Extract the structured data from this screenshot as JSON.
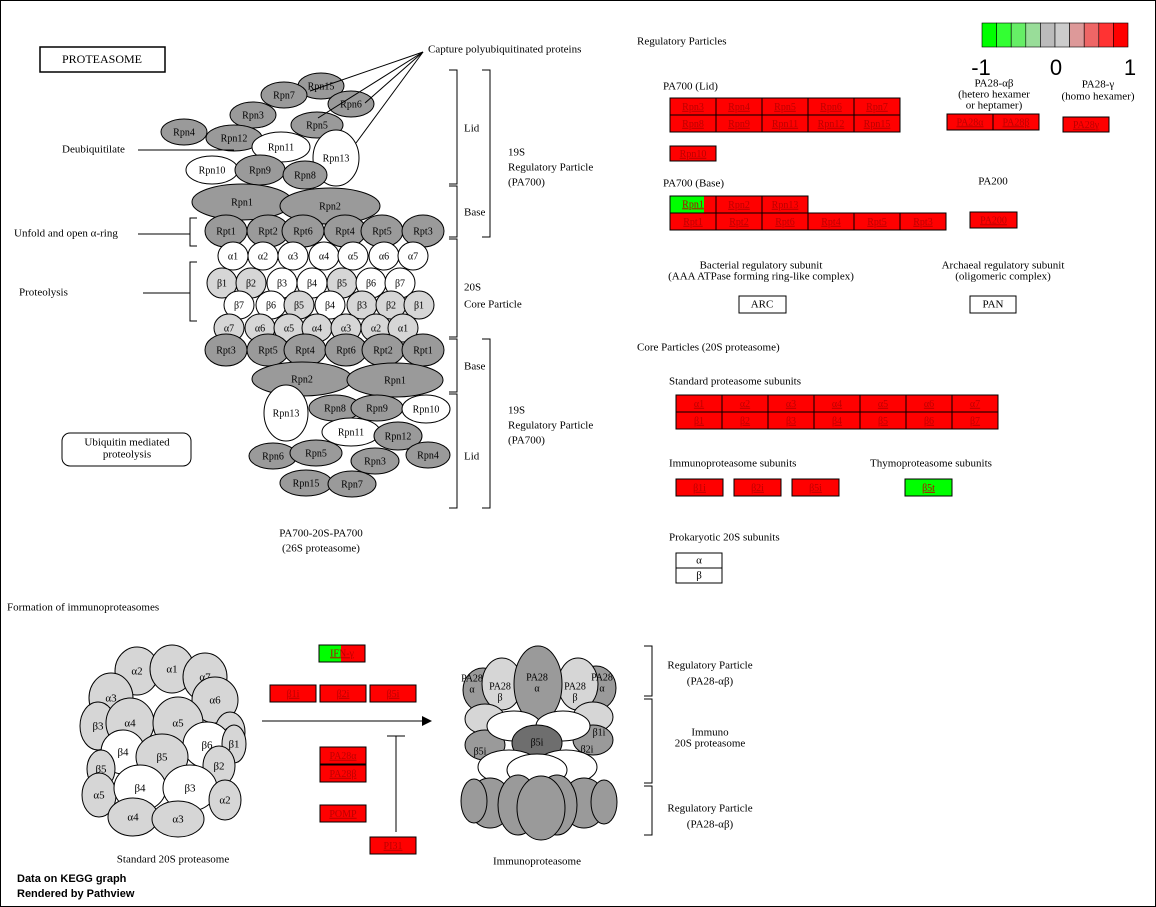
{
  "title": "PROTEASOME",
  "legend": {
    "colors": [
      "#00ff00",
      "#33ff33",
      "#66ee66",
      "#99dd99",
      "#bbbbbb",
      "#cccccc",
      "#dd9999",
      "#ee6666",
      "#ff3333",
      "#ff0000"
    ],
    "tick_min": "-1",
    "tick_mid": "0",
    "tick_max": "1"
  },
  "left_labels": {
    "capture": "Capture polyubiquitinated proteins",
    "deubiquitilate": "Deubiquitilate",
    "unfold": "Unfold and open α-ring",
    "proteolysis": "Proteolysis",
    "lid_top": "Lid",
    "base_top": "Base",
    "rp19s_top": [
      "19S",
      "Regulatory Particle",
      "(PA700)"
    ],
    "cp20s": [
      "20S",
      "Core Particle"
    ],
    "base_bottom": "Base",
    "lid_bottom": "Lid",
    "rp19s_bottom": [
      "19S",
      "Regulatory Particle",
      "(PA700)"
    ],
    "complex_caption": [
      "PA700-20S-PA700",
      "(26S proteasome)"
    ],
    "ubiquitin_box": [
      "Ubiquitin mediated",
      "proteolysis"
    ]
  },
  "structure": {
    "lid_top": [
      "Rpn15",
      "Rpn7",
      "Rpn6",
      "Rpn3",
      "Rpn5",
      "Rpn4",
      "Rpn12",
      "Rpn11",
      "Rpn13",
      "Rpn10",
      "Rpn9",
      "Rpn8"
    ],
    "base_top_big": [
      "Rpn1",
      "Rpn2"
    ],
    "rpt_top": [
      "Rpt1",
      "Rpt2",
      "Rpt6",
      "Rpt4",
      "Rpt5",
      "Rpt3"
    ],
    "alpha_top": [
      "α1",
      "α2",
      "α3",
      "α4",
      "α5",
      "α6",
      "α7"
    ],
    "beta_top": [
      "β1",
      "β2",
      "β3",
      "β4",
      "β5",
      "β6",
      "β7"
    ],
    "beta_bottom": [
      "β7",
      "β6",
      "β5",
      "β4",
      "β3",
      "β2",
      "β1"
    ],
    "alpha_bottom": [
      "α7",
      "α6",
      "α5",
      "α4",
      "α3",
      "α2",
      "α1"
    ],
    "rpt_bottom": [
      "Rpt3",
      "Rpt5",
      "Rpt4",
      "Rpt6",
      "Rpt2",
      "Rpt1"
    ],
    "base_bottom_big": [
      "Rpn2",
      "Rpn1"
    ],
    "lid_bottom": [
      "Rpn13",
      "Rpn8",
      "Rpn9",
      "Rpn10",
      "Rpn11",
      "Rpn12",
      "Rpn6",
      "Rpn5",
      "Rpn3",
      "Rpn4",
      "Rpn15",
      "Rpn7"
    ]
  },
  "regulatory": {
    "heading": "Regulatory Particles",
    "pa700_lid_label": "PA700 (Lid)",
    "pa700_lid_rows": [
      [
        "Rpn3",
        "Rpn4",
        "Rpn5",
        "Rpn6",
        "Rpn7"
      ],
      [
        "Rpn8",
        "Rpn9",
        "Rpn11",
        "Rpn12",
        "Rpn15"
      ]
    ],
    "rpn10": "Rpn10",
    "pa28ab_label": [
      "PA28-αβ",
      "(hetero hexamer",
      "or heptamer)"
    ],
    "pa28ab": [
      "PA28α",
      "PA28β"
    ],
    "pa28g_label": [
      "PA28-γ",
      "(homo hexamer)"
    ],
    "pa28g": "PA28γ",
    "pa700_base_label": "PA700 (Base)",
    "pa700_base_row1": [
      "Rpn1",
      "Rpn2",
      "Rpn13"
    ],
    "pa700_base_row2": [
      "Rpt1",
      "Rpt2",
      "Rpt6",
      "Rpt4",
      "Rpt5",
      "Rpt3"
    ],
    "pa200_label": "PA200",
    "pa200": "PA200",
    "bacterial_label": [
      "Bacterial regulatory subunit",
      "(AAA ATPase forming ring-like complex)"
    ],
    "arc": "ARC",
    "archaeal_label": [
      "Archaeal regulatory subunit",
      "(oligomeric complex)"
    ],
    "pan": "PAN"
  },
  "core": {
    "heading": "Core Particles (20S proteasome)",
    "standard_label": "Standard proteasome subunits",
    "standard_rows": [
      [
        "α1",
        "α2",
        "α3",
        "α4",
        "α5",
        "α6",
        "α7"
      ],
      [
        "β1",
        "β2",
        "β3",
        "β4",
        "β5",
        "β6",
        "β7"
      ]
    ],
    "immuno_label": "Immunoproteasome subunits",
    "immuno": [
      "β1i",
      "β2i",
      "β5i"
    ],
    "thymo_label": "Thymoproteasome subunits",
    "thymo": "β5t",
    "prokaryotic_label": "Prokaryotic 20S subunits",
    "prokaryotic": [
      "α",
      "β"
    ]
  },
  "immuno_formation": {
    "heading": "Formation of immunoproteasomes",
    "standard_caption": "Standard 20S proteasome",
    "immuno_caption": "Immunoproteasome",
    "standard_cylinder": [
      "α2",
      "α1",
      "α7",
      "α3",
      "α6",
      "β3",
      "α4",
      "α5",
      "β7",
      "β4",
      "β6",
      "β1",
      "β5",
      "β5",
      "β2",
      "α5",
      "β4",
      "β3",
      "α2",
      "α4",
      "α3"
    ],
    "ifn": "IFN-γ",
    "immuno_genes": [
      "β1i",
      "β2i",
      "β5i"
    ],
    "pa28_genes": [
      "PA28α",
      "PA28β"
    ],
    "pomp": "POMP",
    "pi31": "PI31",
    "cap_labels": [
      "PA28",
      "α",
      "PA28",
      "β",
      "PA28",
      "α",
      "PA28",
      "β",
      "PA28",
      "α"
    ],
    "immuno_core_labels": [
      "β5i",
      "β5i",
      "β2i",
      "β1i"
    ],
    "rp_top": [
      "Regulatory Particle",
      "(PA28-αβ)"
    ],
    "immuno20s": [
      "Immuno",
      "20S proteasome"
    ],
    "rp_bottom": [
      "Regulatory Particle",
      "(PA28-αβ)"
    ]
  },
  "footer": [
    "Data on KEGG graph",
    "Rendered by Pathview"
  ]
}
